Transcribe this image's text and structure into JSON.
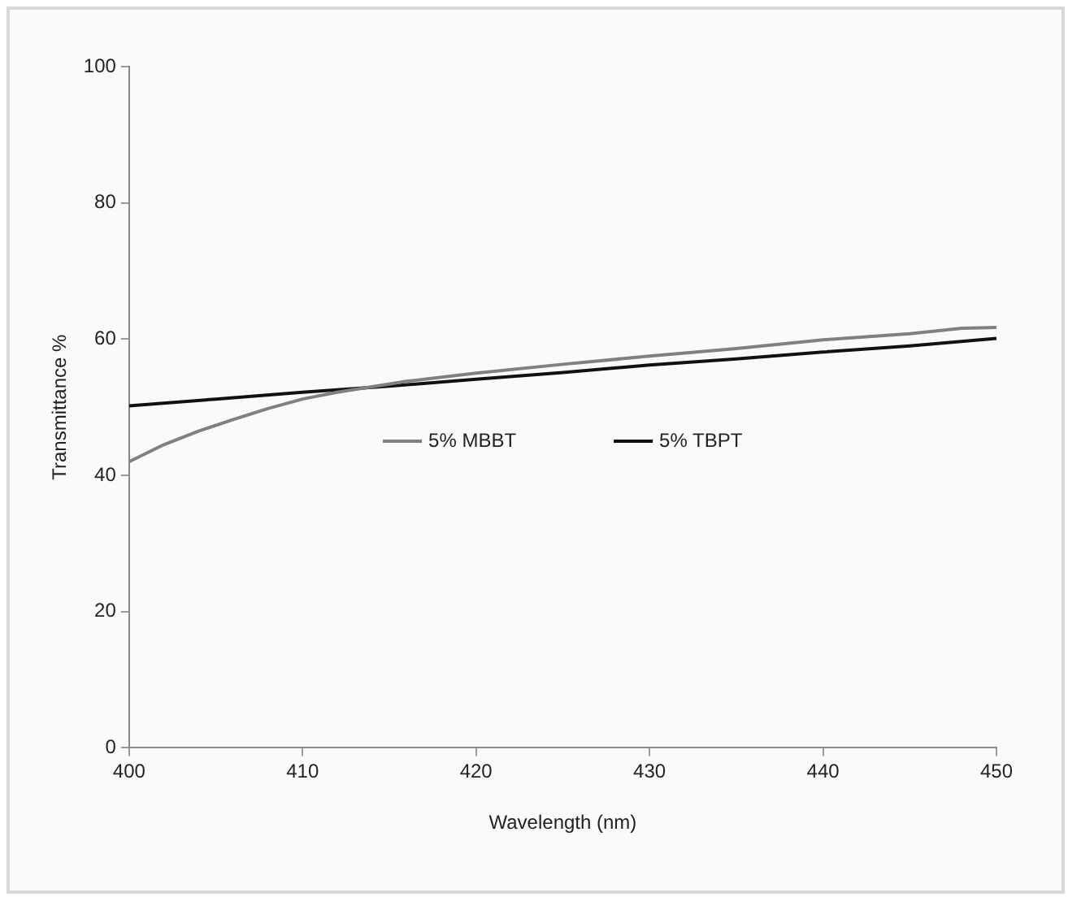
{
  "chart_data": {
    "type": "line",
    "xlabel": "Wavelength (nm)",
    "ylabel": "Transmittance %",
    "xlim": [
      400,
      450
    ],
    "xticks": [
      400,
      410,
      420,
      430,
      440,
      450
    ],
    "ylim": [
      0,
      100
    ],
    "yticks": [
      0,
      20,
      40,
      60,
      80,
      100
    ],
    "grid": false,
    "legend": "center",
    "marker": "none",
    "line_style": "solid",
    "series": [
      {
        "name": "5% MBBT",
        "color": "#808080",
        "x": [
          400,
          402,
          404,
          406,
          408,
          410,
          412,
          414,
          416,
          418,
          420,
          425,
          430,
          435,
          440,
          445,
          448,
          450
        ],
        "values": [
          42,
          44.5,
          46.5,
          48.2,
          49.8,
          51.2,
          52.2,
          53,
          53.8,
          54.4,
          55,
          56.3,
          57.5,
          58.6,
          59.9,
          60.8,
          61.6,
          61.7
        ]
      },
      {
        "name": "5% TBPT",
        "color": "#111111",
        "x": [
          400,
          405,
          410,
          415,
          420,
          425,
          430,
          435,
          440,
          445,
          450
        ],
        "values": [
          50.2,
          51.2,
          52.2,
          53.1,
          54.1,
          55.1,
          56.2,
          57.1,
          58.1,
          59,
          60.1
        ]
      }
    ]
  }
}
